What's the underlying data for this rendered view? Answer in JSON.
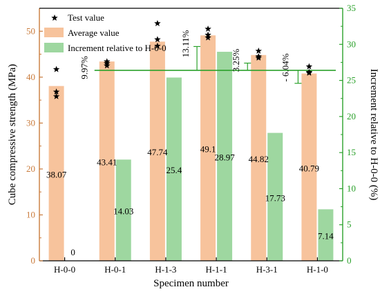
{
  "chart_data": {
    "type": "bar",
    "xlabel": "Specimen number",
    "ylabel_left": "Cube compressive strength (MPa)",
    "ylabel_right": "Increment relative to H-0-0 (%)",
    "categories": [
      "H-0-0",
      "H-0-1",
      "H-1-3",
      "H-1-1",
      "H-3-1",
      "H-1-0"
    ],
    "ylim_left": [
      0,
      55
    ],
    "yticks_left": [
      "0",
      "10",
      "20",
      "30",
      "40",
      "50"
    ],
    "ylim_right": [
      0,
      35
    ],
    "yticks_right": [
      "0",
      "5",
      "10",
      "15",
      "20",
      "25",
      "30",
      "35"
    ],
    "legend": [
      "Test value",
      "Average value",
      "Increment relative to H-0-0"
    ],
    "series": [
      {
        "name": "Average value",
        "axis": "left",
        "color": "#f7c39c",
        "values": [
          38.07,
          43.41,
          47.74,
          49.1,
          44.82,
          40.79
        ],
        "labels": [
          "38.07",
          "43.41",
          "47.74",
          "49.1",
          "44.82",
          "40.79"
        ]
      },
      {
        "name": "Increment relative to H-0-0",
        "axis": "right",
        "color": "#9ed7a0",
        "values": [
          0,
          14.03,
          25.4,
          28.97,
          17.73,
          7.14
        ],
        "labels": [
          "0",
          "14.03",
          "25.4",
          "28.97",
          "17.73",
          "7.14"
        ]
      }
    ],
    "test_values": [
      [
        41.7,
        36.8,
        35.8
      ],
      [
        42.5,
        43.0,
        43.4
      ],
      [
        51.7,
        48.2,
        46.8
      ],
      [
        50.5,
        48.6,
        49.2
      ],
      [
        45.7,
        44.5,
        44.2
      ],
      [
        42.3,
        41.1,
        40.9
      ]
    ],
    "reference_line": {
      "axis": "right",
      "value": 26.4,
      "color": "#2aa12a"
    },
    "annotations": [
      {
        "category": "H-0-1",
        "text": "9.97%",
        "from": 26.4,
        "to": 26.4,
        "offset": -20
      },
      {
        "category": "H-1-3",
        "text": "",
        "from": 26.4,
        "to": 26.4,
        "offset": 0
      },
      {
        "category": "H-1-1",
        "text": "13.11%",
        "from": 26.4,
        "to": 29.7,
        "offset": -20
      },
      {
        "category": "H-3-1",
        "text": "3.25%",
        "from": 26.4,
        "to": 27.4,
        "offset": -20
      },
      {
        "category": "H-1-0",
        "text": "- 6.04%",
        "from": 26.4,
        "to": 24.6,
        "offset": -22
      }
    ],
    "colors": {
      "left_axis": "#c97a3a",
      "right_axis": "#2aa12a",
      "marker": "#000000"
    }
  }
}
